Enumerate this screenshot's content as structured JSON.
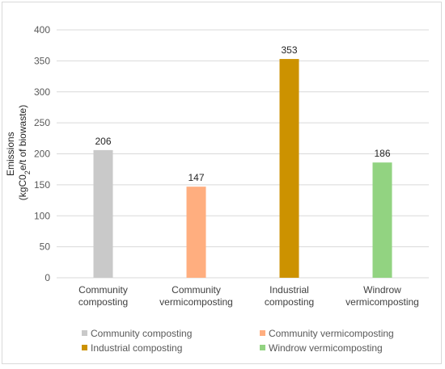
{
  "chart_data": {
    "type": "bar",
    "categories": [
      [
        "Community",
        "composting"
      ],
      [
        "Community",
        "vermicomposting"
      ],
      [
        "Industrial",
        "composting"
      ],
      [
        "Windrow",
        "vermicomposting"
      ]
    ],
    "values": [
      206,
      147,
      353,
      186
    ],
    "colors": [
      "#c9c9c9",
      "#ffae7f",
      "#cc9200",
      "#92d381"
    ],
    "ylabel_line1": "Emissions",
    "ylabel_line2_parts": {
      "a": "(kgC0",
      "b": "2",
      "c": "e/t of biowaste)"
    },
    "ylim": [
      0,
      400
    ],
    "yticks": [
      0,
      50,
      100,
      150,
      200,
      250,
      300,
      350,
      400
    ],
    "grid": true,
    "legend_position": "bottom",
    "legend": [
      "Community composting",
      "Community vermicomposting",
      "Industrial composting",
      "Windrow vermicomposting"
    ]
  }
}
